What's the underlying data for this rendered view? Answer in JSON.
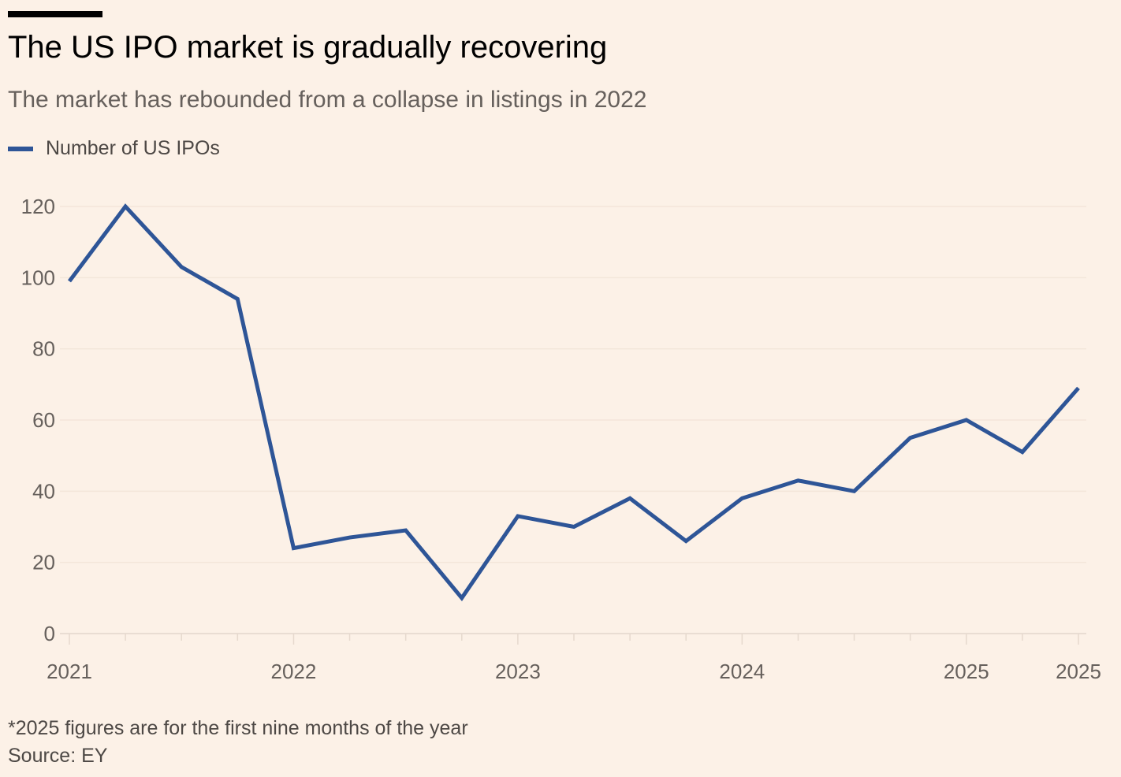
{
  "header": {
    "title": "The US IPO market is gradually recovering",
    "subtitle": "The market has rebounded from a collapse in listings in 2022"
  },
  "legend": {
    "label": "Number of US IPOs",
    "color": "#2e5597"
  },
  "footer": {
    "note": "*2025 figures are for the first nine months of the year",
    "source": "Source: EY"
  },
  "chart_data": {
    "type": "line",
    "title": "The US IPO market is gradually recovering",
    "subtitle": "The market has rebounded from a collapse in listings in 2022",
    "xlabel": "",
    "ylabel": "",
    "ylim": [
      0,
      120
    ],
    "yticks": [
      0,
      20,
      40,
      60,
      80,
      100,
      120
    ],
    "grid": true,
    "legend_position": "top-left",
    "x": [
      "2021 Q1",
      "2021 Q2",
      "2021 Q3",
      "2021 Q4",
      "2022 Q1",
      "2022 Q2",
      "2022 Q3",
      "2022 Q4",
      "2023 Q1",
      "2023 Q2",
      "2023 Q3",
      "2023 Q4",
      "2024 Q1",
      "2024 Q2",
      "2024 Q3",
      "2024 Q4",
      "2025 Q1",
      "2025 Q2",
      "2025 Q3"
    ],
    "xtick_labels": [
      {
        "index": 0,
        "label": "2021"
      },
      {
        "index": 4,
        "label": "2022"
      },
      {
        "index": 8,
        "label": "2023"
      },
      {
        "index": 12,
        "label": "2024"
      },
      {
        "index": 16,
        "label": "2025"
      },
      {
        "index": 18,
        "label": "2025"
      }
    ],
    "series": [
      {
        "name": "Number of US IPOs",
        "color": "#2e5597",
        "values": [
          99,
          120,
          103,
          94,
          24,
          27,
          29,
          10,
          33,
          30,
          38,
          26,
          38,
          43,
          40,
          55,
          60,
          51,
          69
        ]
      }
    ]
  }
}
